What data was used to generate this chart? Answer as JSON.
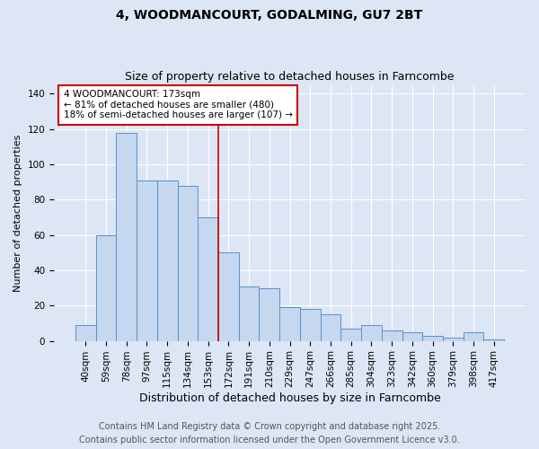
{
  "title1": "4, WOODMANCOURT, GODALMING, GU7 2BT",
  "title2": "Size of property relative to detached houses in Farncombe",
  "xlabel": "Distribution of detached houses by size in Farncombe",
  "ylabel": "Number of detached properties",
  "categories": [
    "40sqm",
    "59sqm",
    "78sqm",
    "97sqm",
    "115sqm",
    "134sqm",
    "153sqm",
    "172sqm",
    "191sqm",
    "210sqm",
    "229sqm",
    "247sqm",
    "266sqm",
    "285sqm",
    "304sqm",
    "323sqm",
    "342sqm",
    "360sqm",
    "379sqm",
    "398sqm",
    "417sqm"
  ],
  "values": [
    9,
    60,
    118,
    91,
    91,
    88,
    70,
    50,
    31,
    30,
    19,
    18,
    15,
    7,
    9,
    6,
    5,
    3,
    2,
    5,
    1
  ],
  "bar_color": "#c5d8ef",
  "bar_edge_color": "#5b8fc9",
  "vline_x_index": 6.5,
  "vline_color": "#cc0000",
  "ann_line1": "4 WOODMANCOURT: 173sqm",
  "ann_line2": "← 81% of detached houses are smaller (480)",
  "ann_line3": "18% of semi-detached houses are larger (107) →",
  "annotation_box_color": "#ffffff",
  "annotation_box_edge": "#cc0000",
  "footer1": "Contains HM Land Registry data © Crown copyright and database right 2025.",
  "footer2": "Contains public sector information licensed under the Open Government Licence v3.0.",
  "background_color": "#dce6f5",
  "grid_color": "#ffffff",
  "ylim": [
    0,
    145
  ],
  "yticks": [
    0,
    20,
    40,
    60,
    80,
    100,
    120,
    140
  ],
  "title1_fontsize": 10,
  "title2_fontsize": 9,
  "tick_fontsize": 7.5,
  "xlabel_fontsize": 9,
  "ylabel_fontsize": 8,
  "ann_fontsize": 7.5,
  "footer_fontsize": 7
}
